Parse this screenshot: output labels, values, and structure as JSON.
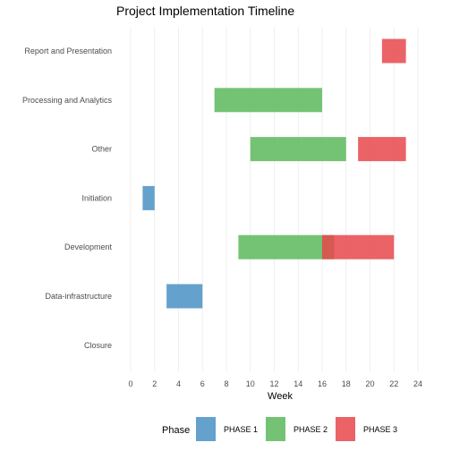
{
  "chart_data": {
    "type": "bar",
    "orientation": "horizontal-gantt",
    "title": "Project Implementation Timeline",
    "xlabel": "Week",
    "ylabel": "",
    "xlim": [
      0,
      24
    ],
    "xticks": [
      0,
      2,
      4,
      6,
      8,
      10,
      12,
      14,
      16,
      18,
      20,
      22,
      24
    ],
    "grid": true,
    "legend": {
      "title": "Phase",
      "position": "bottom"
    },
    "categories": [
      "Report and Presentation",
      "Processing and Analytics",
      "Other",
      "Initiation",
      "Development",
      "Data-infrastructure",
      "Closure"
    ],
    "series": [
      {
        "name": "PHASE 1",
        "color": "#4a90c4",
        "tasks": [
          {
            "category": "Initiation",
            "start": 1,
            "end": 2
          },
          {
            "category": "Data-infrastructure",
            "start": 3,
            "end": 6
          }
        ]
      },
      {
        "name": "PHASE 2",
        "color": "#5cb85c",
        "tasks": [
          {
            "category": "Processing and Analytics",
            "start": 7,
            "end": 16
          },
          {
            "category": "Other",
            "start": 10,
            "end": 18
          },
          {
            "category": "Development",
            "start": 9,
            "end": 17
          }
        ]
      },
      {
        "name": "PHASE 3",
        "color": "#e8474c",
        "tasks": [
          {
            "category": "Report and Presentation",
            "start": 21,
            "end": 23
          },
          {
            "category": "Other",
            "start": 19,
            "end": 23
          },
          {
            "category": "Development",
            "start": 16,
            "end": 22
          }
        ]
      }
    ]
  }
}
